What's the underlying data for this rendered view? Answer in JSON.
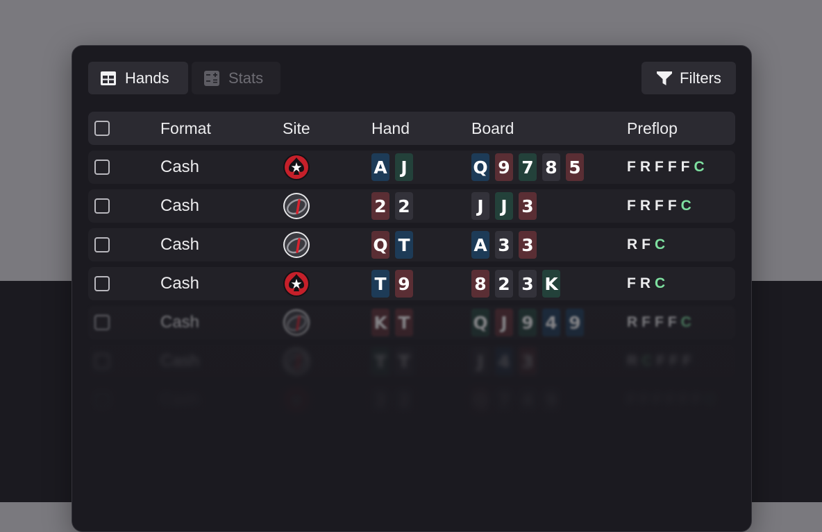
{
  "tabs": {
    "hands": {
      "label": "Hands",
      "icon": "table-icon"
    },
    "stats": {
      "label": "Stats",
      "icon": "calculator-icon"
    }
  },
  "filters": {
    "label": "Filters",
    "icon": "funnel-icon"
  },
  "columns": {
    "format": "Format",
    "site": "Site",
    "hand": "Hand",
    "board": "Board",
    "preflop": "Preflop"
  },
  "rows": [
    {
      "format": "Cash",
      "site": "pokerstars-icon",
      "hand": [
        {
          "r": "A",
          "s": "blue"
        },
        {
          "r": "J",
          "s": "green"
        }
      ],
      "board": [
        {
          "r": "Q",
          "s": "blue"
        },
        {
          "r": "9",
          "s": "red"
        },
        {
          "r": "7",
          "s": "green"
        },
        {
          "r": "8",
          "s": "dark"
        },
        {
          "r": "5",
          "s": "red"
        }
      ],
      "preflop": [
        "F",
        "R",
        "F",
        "F",
        "F",
        "C"
      ]
    },
    {
      "format": "Cash",
      "site": "ggpoker-icon",
      "hand": [
        {
          "r": "2",
          "s": "red"
        },
        {
          "r": "2",
          "s": "dark"
        }
      ],
      "board": [
        {
          "r": "J",
          "s": "dark"
        },
        {
          "r": "J",
          "s": "green"
        },
        {
          "r": "3",
          "s": "red"
        }
      ],
      "preflop": [
        "F",
        "R",
        "F",
        "F",
        "C"
      ]
    },
    {
      "format": "Cash",
      "site": "ggpoker-icon",
      "hand": [
        {
          "r": "Q",
          "s": "red"
        },
        {
          "r": "T",
          "s": "blue"
        }
      ],
      "board": [
        {
          "r": "A",
          "s": "blue"
        },
        {
          "r": "3",
          "s": "dark"
        },
        {
          "r": "3",
          "s": "red"
        }
      ],
      "preflop": [
        "R",
        "F",
        "C"
      ]
    },
    {
      "format": "Cash",
      "site": "pokerstars-icon",
      "hand": [
        {
          "r": "T",
          "s": "blue"
        },
        {
          "r": "9",
          "s": "red"
        }
      ],
      "board": [
        {
          "r": "8",
          "s": "red"
        },
        {
          "r": "2",
          "s": "dark"
        },
        {
          "r": "3",
          "s": "dark"
        },
        {
          "r": "K",
          "s": "green"
        }
      ],
      "preflop": [
        "F",
        "R",
        "C"
      ]
    },
    {
      "format": "Cash",
      "site": "ggpoker-icon",
      "hand": [
        {
          "r": "K",
          "s": "red"
        },
        {
          "r": "T",
          "s": "red"
        }
      ],
      "board": [
        {
          "r": "Q",
          "s": "green"
        },
        {
          "r": "J",
          "s": "red"
        },
        {
          "r": "9",
          "s": "green"
        },
        {
          "r": "4",
          "s": "blue"
        },
        {
          "r": "9",
          "s": "blue"
        }
      ],
      "preflop": [
        "R",
        "F",
        "F",
        "F",
        "C"
      ]
    },
    {
      "format": "Cash",
      "site": "ggpoker-icon",
      "hand": [
        {
          "r": "T",
          "s": "green"
        },
        {
          "r": "T",
          "s": "dark"
        }
      ],
      "board": [
        {
          "r": "J",
          "s": "dark"
        },
        {
          "r": "4",
          "s": "blue"
        },
        {
          "r": "3",
          "s": "red"
        }
      ],
      "preflop": [
        "R",
        "C",
        "F",
        "F",
        "F"
      ]
    },
    {
      "format": "Cash",
      "site": "pokerstars-icon",
      "hand": [
        {
          "r": "2",
          "s": "dark"
        },
        {
          "r": "2",
          "s": "dark"
        }
      ],
      "board": [
        {
          "r": "Q",
          "s": "red"
        },
        {
          "r": "7",
          "s": "dark"
        },
        {
          "r": "4",
          "s": "dark"
        },
        {
          "r": "9",
          "s": "dark"
        }
      ],
      "preflop": [
        "F",
        "F",
        "F",
        "F",
        "F",
        "F",
        "C"
      ]
    }
  ]
}
